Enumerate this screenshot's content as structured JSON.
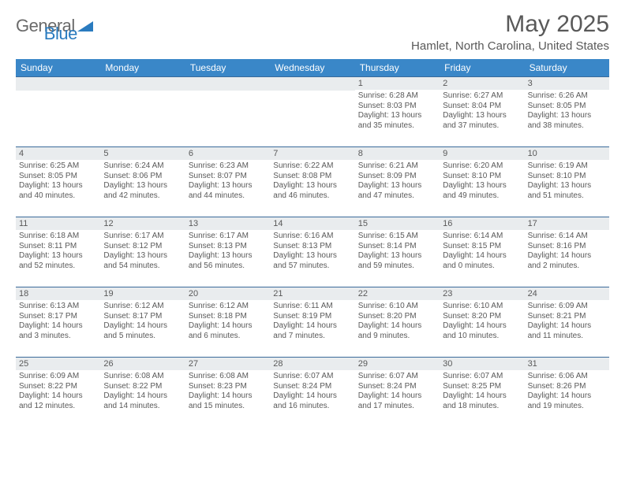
{
  "logo": {
    "general": "General",
    "blue": "Blue"
  },
  "title": "May 2025",
  "location": "Hamlet, North Carolina, United States",
  "day_names": [
    "Sunday",
    "Monday",
    "Tuesday",
    "Wednesday",
    "Thursday",
    "Friday",
    "Saturday"
  ],
  "colors": {
    "header_bg": "#3a87c8",
    "header_text": "#ffffff",
    "date_bg": "#e9ecee",
    "text": "#595959",
    "rule": "#3a6a9a"
  },
  "weeks": [
    [
      null,
      null,
      null,
      null,
      {
        "d": "1",
        "sr": "6:28 AM",
        "ss": "8:03 PM",
        "dl1": "Daylight: 13 hours",
        "dl2": "and 35 minutes."
      },
      {
        "d": "2",
        "sr": "6:27 AM",
        "ss": "8:04 PM",
        "dl1": "Daylight: 13 hours",
        "dl2": "and 37 minutes."
      },
      {
        "d": "3",
        "sr": "6:26 AM",
        "ss": "8:05 PM",
        "dl1": "Daylight: 13 hours",
        "dl2": "and 38 minutes."
      }
    ],
    [
      {
        "d": "4",
        "sr": "6:25 AM",
        "ss": "8:05 PM",
        "dl1": "Daylight: 13 hours",
        "dl2": "and 40 minutes."
      },
      {
        "d": "5",
        "sr": "6:24 AM",
        "ss": "8:06 PM",
        "dl1": "Daylight: 13 hours",
        "dl2": "and 42 minutes."
      },
      {
        "d": "6",
        "sr": "6:23 AM",
        "ss": "8:07 PM",
        "dl1": "Daylight: 13 hours",
        "dl2": "and 44 minutes."
      },
      {
        "d": "7",
        "sr": "6:22 AM",
        "ss": "8:08 PM",
        "dl1": "Daylight: 13 hours",
        "dl2": "and 46 minutes."
      },
      {
        "d": "8",
        "sr": "6:21 AM",
        "ss": "8:09 PM",
        "dl1": "Daylight: 13 hours",
        "dl2": "and 47 minutes."
      },
      {
        "d": "9",
        "sr": "6:20 AM",
        "ss": "8:10 PM",
        "dl1": "Daylight: 13 hours",
        "dl2": "and 49 minutes."
      },
      {
        "d": "10",
        "sr": "6:19 AM",
        "ss": "8:10 PM",
        "dl1": "Daylight: 13 hours",
        "dl2": "and 51 minutes."
      }
    ],
    [
      {
        "d": "11",
        "sr": "6:18 AM",
        "ss": "8:11 PM",
        "dl1": "Daylight: 13 hours",
        "dl2": "and 52 minutes."
      },
      {
        "d": "12",
        "sr": "6:17 AM",
        "ss": "8:12 PM",
        "dl1": "Daylight: 13 hours",
        "dl2": "and 54 minutes."
      },
      {
        "d": "13",
        "sr": "6:17 AM",
        "ss": "8:13 PM",
        "dl1": "Daylight: 13 hours",
        "dl2": "and 56 minutes."
      },
      {
        "d": "14",
        "sr": "6:16 AM",
        "ss": "8:13 PM",
        "dl1": "Daylight: 13 hours",
        "dl2": "and 57 minutes."
      },
      {
        "d": "15",
        "sr": "6:15 AM",
        "ss": "8:14 PM",
        "dl1": "Daylight: 13 hours",
        "dl2": "and 59 minutes."
      },
      {
        "d": "16",
        "sr": "6:14 AM",
        "ss": "8:15 PM",
        "dl1": "Daylight: 14 hours",
        "dl2": "and 0 minutes."
      },
      {
        "d": "17",
        "sr": "6:14 AM",
        "ss": "8:16 PM",
        "dl1": "Daylight: 14 hours",
        "dl2": "and 2 minutes."
      }
    ],
    [
      {
        "d": "18",
        "sr": "6:13 AM",
        "ss": "8:17 PM",
        "dl1": "Daylight: 14 hours",
        "dl2": "and 3 minutes."
      },
      {
        "d": "19",
        "sr": "6:12 AM",
        "ss": "8:17 PM",
        "dl1": "Daylight: 14 hours",
        "dl2": "and 5 minutes."
      },
      {
        "d": "20",
        "sr": "6:12 AM",
        "ss": "8:18 PM",
        "dl1": "Daylight: 14 hours",
        "dl2": "and 6 minutes."
      },
      {
        "d": "21",
        "sr": "6:11 AM",
        "ss": "8:19 PM",
        "dl1": "Daylight: 14 hours",
        "dl2": "and 7 minutes."
      },
      {
        "d": "22",
        "sr": "6:10 AM",
        "ss": "8:20 PM",
        "dl1": "Daylight: 14 hours",
        "dl2": "and 9 minutes."
      },
      {
        "d": "23",
        "sr": "6:10 AM",
        "ss": "8:20 PM",
        "dl1": "Daylight: 14 hours",
        "dl2": "and 10 minutes."
      },
      {
        "d": "24",
        "sr": "6:09 AM",
        "ss": "8:21 PM",
        "dl1": "Daylight: 14 hours",
        "dl2": "and 11 minutes."
      }
    ],
    [
      {
        "d": "25",
        "sr": "6:09 AM",
        "ss": "8:22 PM",
        "dl1": "Daylight: 14 hours",
        "dl2": "and 12 minutes."
      },
      {
        "d": "26",
        "sr": "6:08 AM",
        "ss": "8:22 PM",
        "dl1": "Daylight: 14 hours",
        "dl2": "and 14 minutes."
      },
      {
        "d": "27",
        "sr": "6:08 AM",
        "ss": "8:23 PM",
        "dl1": "Daylight: 14 hours",
        "dl2": "and 15 minutes."
      },
      {
        "d": "28",
        "sr": "6:07 AM",
        "ss": "8:24 PM",
        "dl1": "Daylight: 14 hours",
        "dl2": "and 16 minutes."
      },
      {
        "d": "29",
        "sr": "6:07 AM",
        "ss": "8:24 PM",
        "dl1": "Daylight: 14 hours",
        "dl2": "and 17 minutes."
      },
      {
        "d": "30",
        "sr": "6:07 AM",
        "ss": "8:25 PM",
        "dl1": "Daylight: 14 hours",
        "dl2": "and 18 minutes."
      },
      {
        "d": "31",
        "sr": "6:06 AM",
        "ss": "8:26 PM",
        "dl1": "Daylight: 14 hours",
        "dl2": "and 19 minutes."
      }
    ]
  ]
}
